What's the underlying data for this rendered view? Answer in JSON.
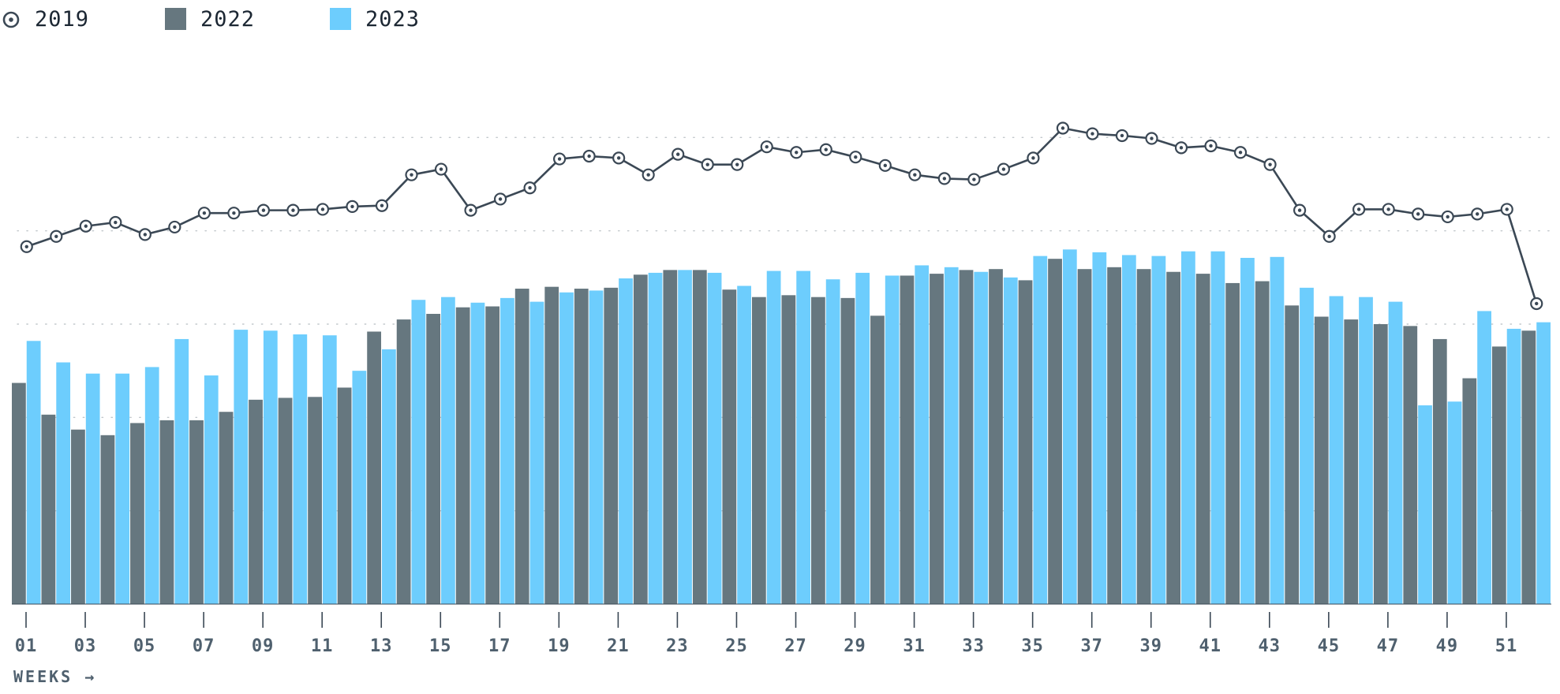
{
  "legend": [
    {
      "label": "2019",
      "marker": "circle-dot-icon"
    },
    {
      "label": "2022",
      "marker": "square"
    },
    {
      "label": "2023",
      "marker": "square"
    }
  ],
  "colors": {
    "series_2019": "#3b4855",
    "series_2022": "#66777f",
    "series_2023": "#6dcdfd",
    "grid": "#c2c8cc",
    "tick": "#3b4855",
    "text": "#1c2733"
  },
  "chart_data": {
    "type": "bar",
    "xlabel": "WEEKS →",
    "ylabel": "",
    "ylim": [
      0,
      60
    ],
    "grid": "horizontal-dotted",
    "legend_position": "top-left",
    "categories": [
      "01",
      "02",
      "03",
      "04",
      "05",
      "06",
      "07",
      "08",
      "09",
      "10",
      "11",
      "12",
      "13",
      "14",
      "15",
      "16",
      "17",
      "18",
      "19",
      "20",
      "21",
      "22",
      "23",
      "24",
      "25",
      "26",
      "27",
      "28",
      "29",
      "30",
      "31",
      "32",
      "33",
      "34",
      "35",
      "36",
      "37",
      "38",
      "39",
      "40",
      "41",
      "42",
      "43",
      "44",
      "45",
      "46",
      "47",
      "48",
      "49",
      "50",
      "51",
      "52"
    ],
    "x_tick_labels": [
      "01",
      "03",
      "05",
      "07",
      "09",
      "11",
      "13",
      "15",
      "17",
      "19",
      "21",
      "23",
      "25",
      "27",
      "29",
      "31",
      "33",
      "35",
      "37",
      "39",
      "41",
      "43",
      "45",
      "47",
      "49",
      "51"
    ],
    "series": [
      {
        "name": "2022",
        "kind": "bar",
        "values": [
          23.7,
          20.3,
          18.7,
          18.1,
          19.4,
          19.7,
          19.7,
          20.6,
          21.9,
          22.1,
          22.2,
          23.2,
          29.2,
          30.5,
          31.1,
          31.8,
          31.9,
          33.8,
          34.0,
          33.8,
          33.9,
          35.3,
          35.8,
          35.8,
          33.7,
          32.9,
          33.1,
          32.9,
          32.8,
          30.9,
          35.2,
          35.4,
          35.8,
          35.9,
          34.7,
          37.0,
          35.9,
          36.1,
          35.9,
          35.6,
          35.4,
          34.4,
          34.6,
          32.0,
          30.8,
          30.5,
          30.0,
          29.8,
          28.4,
          24.2,
          27.6,
          29.3
        ]
      },
      {
        "name": "2023",
        "kind": "bar",
        "values": [
          28.2,
          25.9,
          24.7,
          24.7,
          25.4,
          28.4,
          24.5,
          29.4,
          29.3,
          28.9,
          28.8,
          25.0,
          27.3,
          32.6,
          32.9,
          32.3,
          32.8,
          32.4,
          33.4,
          33.6,
          34.9,
          35.5,
          35.8,
          35.5,
          34.1,
          35.7,
          35.7,
          34.8,
          35.5,
          35.2,
          36.3,
          36.1,
          35.6,
          35.0,
          37.3,
          38.0,
          37.7,
          37.4,
          37.3,
          37.8,
          37.8,
          37.1,
          37.2,
          33.9,
          33.0,
          32.9,
          32.4,
          21.3,
          21.7,
          31.4,
          29.5,
          30.2
        ]
      },
      {
        "name": "2019",
        "kind": "line",
        "values": [
          38.3,
          39.4,
          40.5,
          40.9,
          39.6,
          40.4,
          41.9,
          41.9,
          42.2,
          42.2,
          42.3,
          42.6,
          42.7,
          46.0,
          46.6,
          42.2,
          43.4,
          44.6,
          47.7,
          48.0,
          47.8,
          46.0,
          48.2,
          47.1,
          47.1,
          49.0,
          48.4,
          48.7,
          47.9,
          47.0,
          46.0,
          45.6,
          45.5,
          46.6,
          47.8,
          51.0,
          50.4,
          50.2,
          49.9,
          48.9,
          49.1,
          48.4,
          47.1,
          42.2,
          39.4,
          42.3,
          42.3,
          41.8,
          41.5,
          41.8,
          42.3,
          32.2
        ]
      }
    ]
  }
}
